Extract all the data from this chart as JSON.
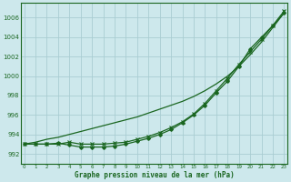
{
  "title": "Graphe pression niveau de la mer (hPa)",
  "background_color": "#cde8ec",
  "grid_color": "#aacdd2",
  "line_color": "#1a6620",
  "x_ticks": [
    0,
    1,
    2,
    3,
    4,
    5,
    6,
    7,
    8,
    9,
    10,
    11,
    12,
    13,
    14,
    15,
    16,
    17,
    18,
    19,
    20,
    21,
    22,
    23
  ],
  "ylim": [
    991.0,
    1007.5
  ],
  "y_ticks": [
    992,
    994,
    996,
    998,
    1000,
    1002,
    1004,
    1006
  ],
  "series_straight": [
    993.0,
    993.2,
    993.5,
    993.7,
    994.0,
    994.3,
    994.6,
    994.9,
    995.2,
    995.5,
    995.8,
    996.2,
    996.6,
    997.0,
    997.4,
    997.9,
    998.5,
    999.2,
    1000.0,
    1001.0,
    1002.2,
    1003.5,
    1005.0,
    1006.5
  ],
  "series_diamond": [
    993.0,
    993.0,
    993.0,
    993.1,
    992.9,
    992.7,
    992.7,
    992.7,
    992.8,
    993.0,
    993.3,
    993.6,
    994.0,
    994.5,
    995.2,
    996.0,
    997.0,
    998.3,
    999.5,
    1001.0,
    1002.8,
    1004.0,
    1005.2,
    1006.5
  ],
  "series_x": [
    993.0,
    993.0,
    993.0,
    993.0,
    993.2,
    993.0,
    993.0,
    993.0,
    993.1,
    993.2,
    993.5,
    993.8,
    994.2,
    994.7,
    995.3,
    996.1,
    997.2,
    998.5,
    999.8,
    1001.2,
    1002.5,
    1003.8,
    1005.2,
    1006.7
  ]
}
